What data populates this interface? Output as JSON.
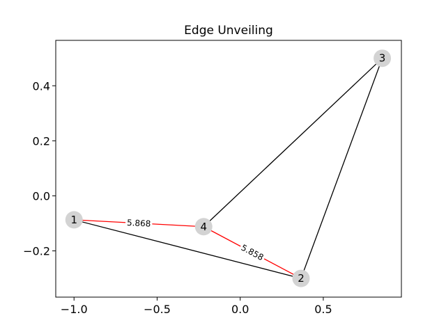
{
  "chart_data": {
    "type": "network-graph",
    "title": "Edge Unveiling",
    "xlabel": "",
    "ylabel": "",
    "xlim": [
      -1.11,
      0.97
    ],
    "ylim": [
      -0.368,
      0.565
    ],
    "x_ticks": [
      -1.0,
      -0.5,
      0.0,
      0.5
    ],
    "x_tick_labels": [
      "−1.0",
      "−0.5",
      "0.0",
      "0.5"
    ],
    "y_ticks": [
      -0.2,
      0.0,
      0.2,
      0.4
    ],
    "y_tick_labels": [
      "−0.2",
      "0.0",
      "0.2",
      "0.4"
    ],
    "grid": false,
    "nodes": [
      {
        "id": "1",
        "label": "1",
        "x": -1.0,
        "y": -0.087
      },
      {
        "id": "2",
        "label": "2",
        "x": 0.366,
        "y": -0.3
      },
      {
        "id": "3",
        "label": "3",
        "x": 0.855,
        "y": 0.5
      },
      {
        "id": "4",
        "label": "4",
        "x": -0.22,
        "y": -0.112
      }
    ],
    "edges": [
      {
        "source": "1",
        "target": "4",
        "color": "#ff0000",
        "label": "5.868"
      },
      {
        "source": "4",
        "target": "2",
        "color": "#ff0000",
        "label": "5.858"
      },
      {
        "source": "1",
        "target": "2",
        "color": "#000000",
        "label": ""
      },
      {
        "source": "4",
        "target": "3",
        "color": "#000000",
        "label": ""
      },
      {
        "source": "2",
        "target": "3",
        "color": "#000000",
        "label": ""
      }
    ],
    "node_color": "#d3d3d3"
  }
}
